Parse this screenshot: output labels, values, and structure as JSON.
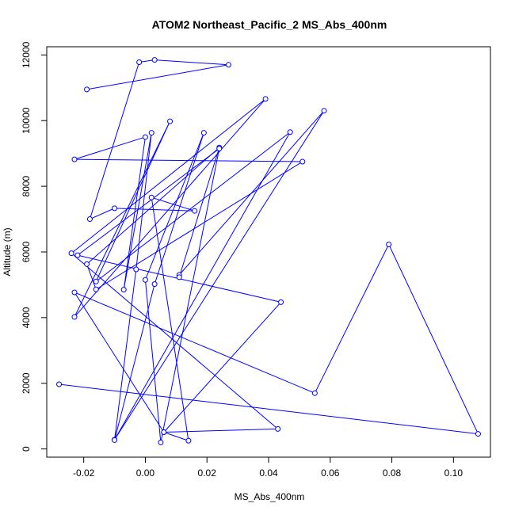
{
  "chart_data": {
    "type": "line",
    "title": "ATOM2 Northeast_Pacific_2 MS_Abs_400nm",
    "xlabel": "MS_Abs_400nm",
    "ylabel": "Altitude (m)",
    "xlim": [
      -0.032,
      0.112
    ],
    "ylim": [
      -250,
      12250
    ],
    "x_ticks": [
      -0.02,
      0.0,
      0.02,
      0.04,
      0.06,
      0.08,
      0.1
    ],
    "x_tick_labels": [
      "-0.02",
      "0.00",
      "0.02",
      "0.04",
      "0.06",
      "0.08",
      "0.10"
    ],
    "y_ticks": [
      0,
      2000,
      4000,
      6000,
      8000,
      10000,
      12000
    ],
    "y_tick_labels": [
      "0",
      "2000",
      "4000",
      "6000",
      "8000",
      "10000",
      "12000"
    ],
    "grid": false,
    "legend": "none",
    "series": [
      {
        "color": "#0000ff",
        "marker": "open-circle",
        "x": [
          -0.019,
          0.027,
          0.003,
          -0.002,
          -0.018,
          -0.01,
          0.016,
          0.002,
          0.014,
          0.006,
          0.043,
          -0.024,
          0.039,
          -0.023,
          0.008,
          -0.016,
          0.047,
          -0.01,
          0.058,
          0.011,
          0.011,
          0.024,
          -0.019,
          -0.016,
          0.051,
          -0.023,
          0.0,
          -0.007,
          0.002,
          -0.003,
          -0.01,
          0.003,
          0.019,
          0.0,
          0.005,
          0.024,
          -0.022,
          0.044,
          0.006,
          -0.023,
          0.055,
          0.079,
          0.108,
          -0.028
        ],
        "y": [
          10950,
          11700,
          11850,
          11780,
          7000,
          7330,
          7250,
          7660,
          250,
          510,
          610,
          5960,
          10660,
          4020,
          9980,
          5100,
          9650,
          280,
          10300,
          5300,
          5230,
          9180,
          5630,
          4860,
          8750,
          8820,
          9500,
          4850,
          9630,
          5470,
          270,
          5020,
          9630,
          5150,
          200,
          9150,
          5900,
          4470,
          510,
          4770,
          1700,
          6230,
          460,
          1970
        ]
      }
    ]
  }
}
